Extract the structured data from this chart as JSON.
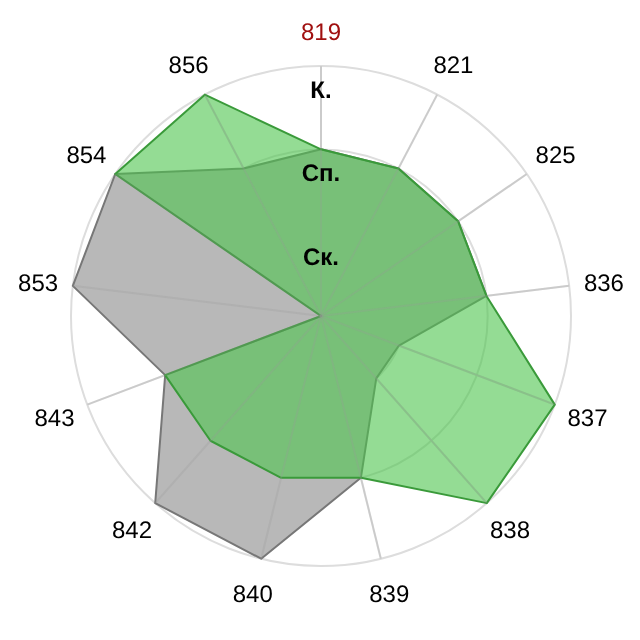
{
  "chart_data": {
    "type": "radar",
    "categories": [
      "819",
      "821",
      "825",
      "836",
      "837",
      "838",
      "839",
      "840",
      "842",
      "843",
      "853",
      "854",
      "856"
    ],
    "series": [
      {
        "color": "#b8b8b8",
        "values": [
          2,
          2,
          2,
          2,
          1,
          1,
          2,
          3,
          3,
          2,
          3,
          3,
          2
        ]
      },
      {
        "color": "#4cc44c",
        "values": [
          2,
          2,
          2,
          2,
          3,
          3,
          2,
          2,
          2,
          2,
          0,
          3,
          3
        ]
      }
    ],
    "ylim": [
      0,
      3
    ],
    "yticks": [
      {
        "value": 1,
        "label": "Ск."
      },
      {
        "value": 2,
        "label": "Сп."
      },
      {
        "value": 3,
        "label": "К."
      }
    ],
    "grid": true
  }
}
